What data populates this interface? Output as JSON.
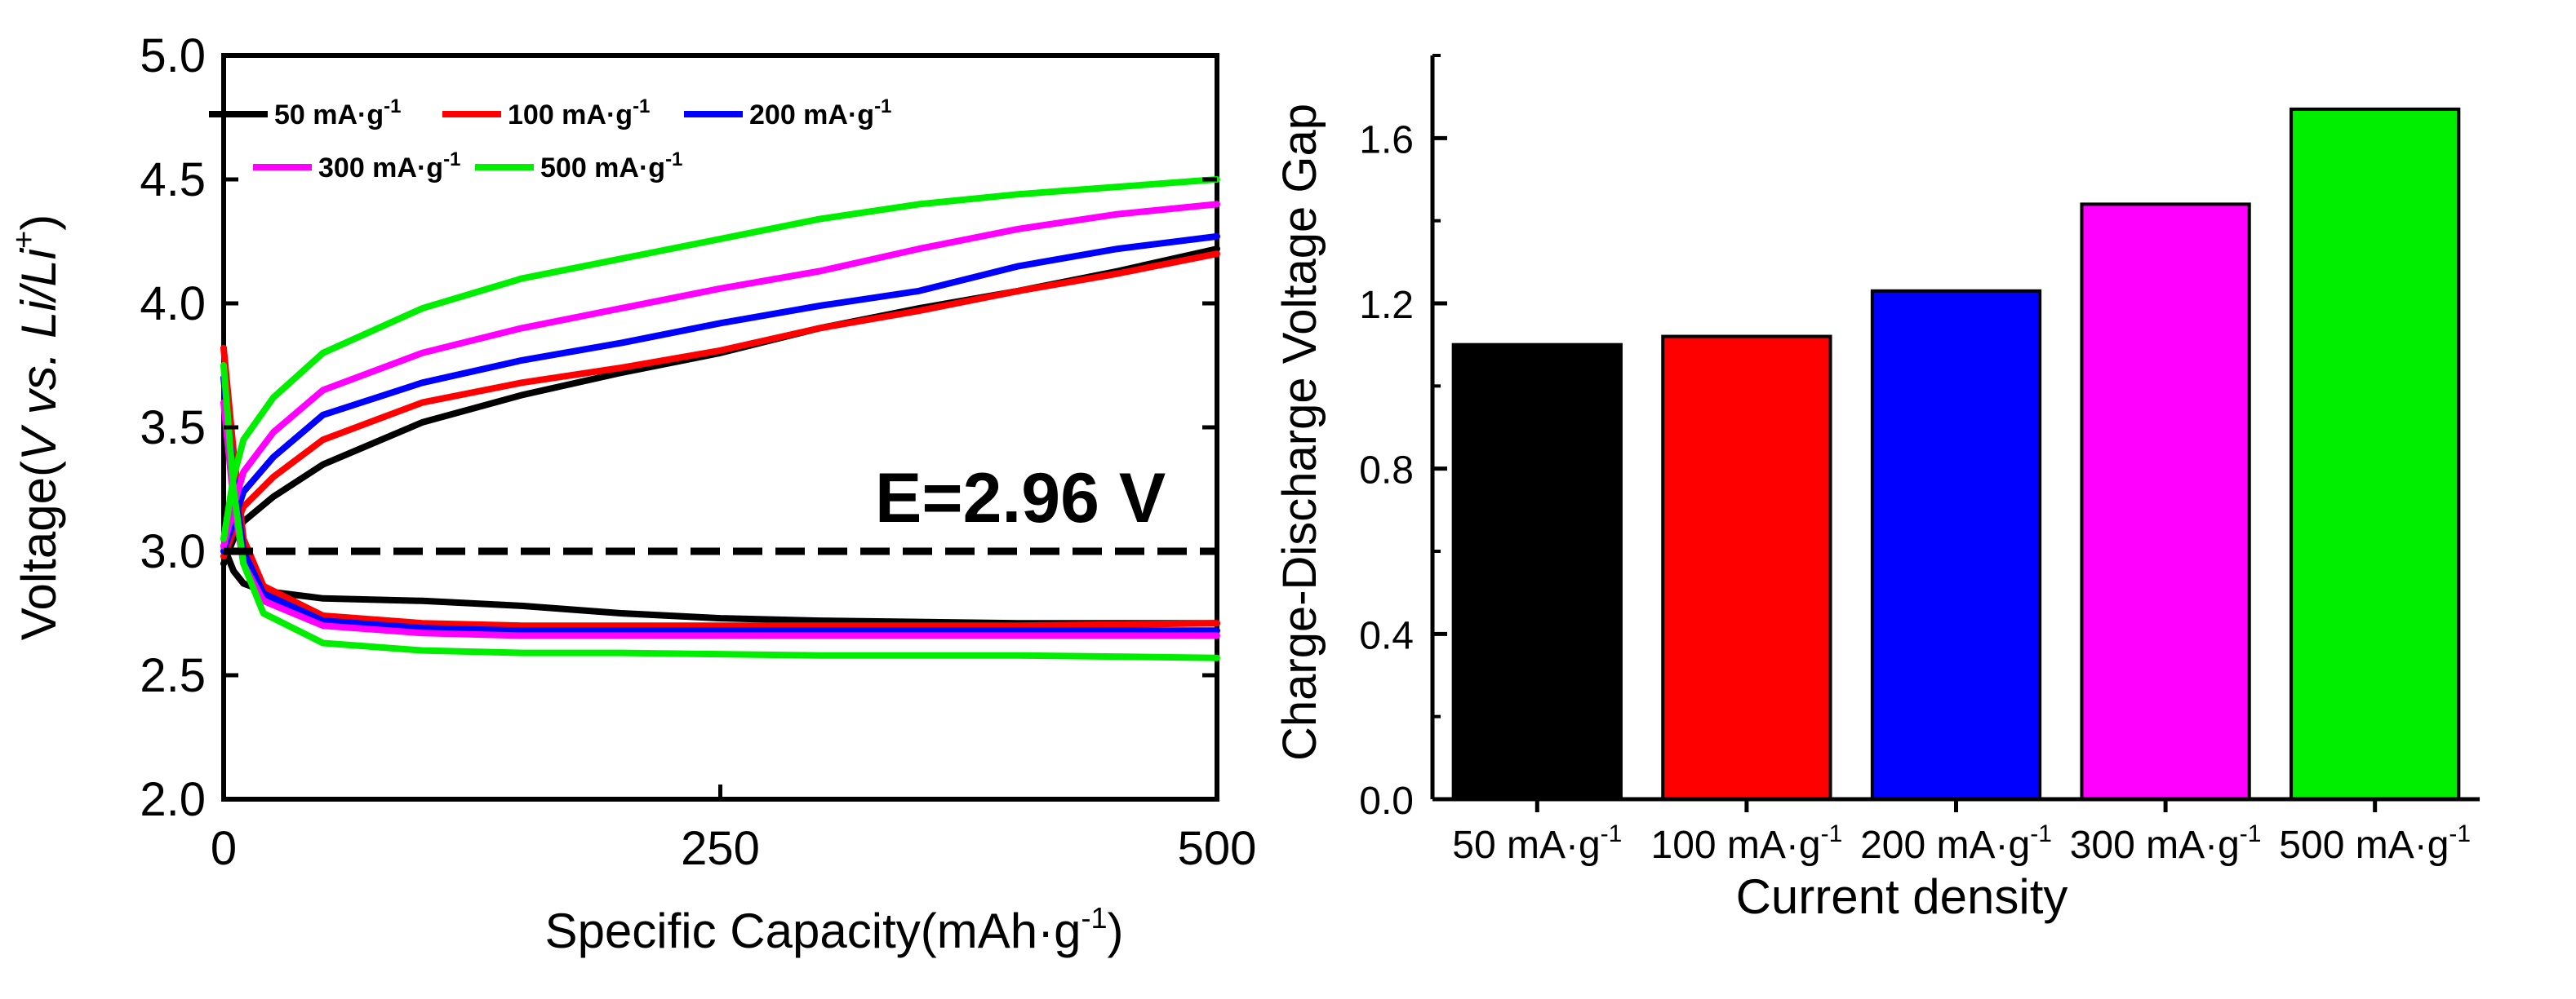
{
  "chart_data": [
    {
      "type": "line",
      "panel": "left",
      "ylabel": "Voltage(V vs. Li/Li+)",
      "ylabel_parts": {
        "prefix": "Voltage(",
        "v": "V",
        "vs": " vs. ",
        "li": "Li/Li",
        "sup": "+",
        "suffix": ")"
      },
      "xlabel": "Specific Capacity(mAh·g-1)",
      "xlabel_parts": {
        "main": "Specific Capacity(mAh·g",
        "sup": "-1",
        "close": ")"
      },
      "xlim": [
        0,
        500
      ],
      "ylim": [
        2.0,
        5.0
      ],
      "xticks": [
        "0",
        "250",
        "500"
      ],
      "yticks": [
        "2.0",
        "2.5",
        "3.0",
        "3.5",
        "4.0",
        "4.5",
        "5.0"
      ],
      "reference_line": {
        "y": 3.0,
        "label": "E=2.96 V",
        "style": "dashed"
      },
      "legend": {
        "placement": "top-left"
      },
      "series": [
        {
          "name": "50 mA·g-1",
          "label": "50 mA·g",
          "sup": "-1",
          "color": "#000000",
          "charge": [
            [
              0,
              2.95
            ],
            [
              5,
              3.05
            ],
            [
              10,
              3.12
            ],
            [
              25,
              3.22
            ],
            [
              50,
              3.35
            ],
            [
              100,
              3.52
            ],
            [
              150,
              3.63
            ],
            [
              200,
              3.72
            ],
            [
              250,
              3.8
            ],
            [
              300,
              3.9
            ],
            [
              350,
              3.98
            ],
            [
              400,
              4.05
            ],
            [
              450,
              4.13
            ],
            [
              500,
              4.22
            ]
          ],
          "discharge": [
            [
              0,
              3.02
            ],
            [
              5,
              2.92
            ],
            [
              10,
              2.87
            ],
            [
              20,
              2.84
            ],
            [
              50,
              2.81
            ],
            [
              100,
              2.8
            ],
            [
              150,
              2.78
            ],
            [
              200,
              2.75
            ],
            [
              250,
              2.73
            ],
            [
              300,
              2.72
            ],
            [
              400,
              2.71
            ],
            [
              500,
              2.71
            ]
          ]
        },
        {
          "name": "100 mA·g-1",
          "label": "100 mA·g",
          "sup": "-1",
          "color": "#ff0000",
          "charge": [
            [
              0,
              2.98
            ],
            [
              5,
              3.08
            ],
            [
              10,
              3.18
            ],
            [
              25,
              3.3
            ],
            [
              50,
              3.45
            ],
            [
              100,
              3.6
            ],
            [
              150,
              3.68
            ],
            [
              200,
              3.74
            ],
            [
              250,
              3.81
            ],
            [
              300,
              3.9
            ],
            [
              350,
              3.97
            ],
            [
              400,
              4.05
            ],
            [
              450,
              4.12
            ],
            [
              500,
              4.2
            ]
          ],
          "discharge": [
            [
              0,
              3.82
            ],
            [
              5,
              3.4
            ],
            [
              10,
              3.05
            ],
            [
              20,
              2.86
            ],
            [
              50,
              2.74
            ],
            [
              100,
              2.71
            ],
            [
              150,
              2.7
            ],
            [
              200,
              2.7
            ],
            [
              300,
              2.7
            ],
            [
              400,
              2.7
            ],
            [
              500,
              2.71
            ]
          ]
        },
        {
          "name": "200 mA·g-1",
          "label": "200 mA·g",
          "sup": "-1",
          "color": "#0000ff",
          "charge": [
            [
              0,
              3.0
            ],
            [
              5,
              3.12
            ],
            [
              10,
              3.24
            ],
            [
              25,
              3.38
            ],
            [
              50,
              3.55
            ],
            [
              100,
              3.68
            ],
            [
              150,
              3.77
            ],
            [
              200,
              3.84
            ],
            [
              250,
              3.92
            ],
            [
              300,
              3.99
            ],
            [
              350,
              4.05
            ],
            [
              400,
              4.15
            ],
            [
              450,
              4.22
            ],
            [
              500,
              4.27
            ]
          ],
          "discharge": [
            [
              0,
              3.7
            ],
            [
              5,
              3.3
            ],
            [
              10,
              3.0
            ],
            [
              20,
              2.83
            ],
            [
              50,
              2.72
            ],
            [
              100,
              2.69
            ],
            [
              150,
              2.68
            ],
            [
              200,
              2.68
            ],
            [
              300,
              2.68
            ],
            [
              400,
              2.68
            ],
            [
              500,
              2.68
            ]
          ]
        },
        {
          "name": "300 mA·g-1",
          "label": "300 mA·g",
          "sup": "-1",
          "color": "#ff00ff",
          "charge": [
            [
              0,
              3.02
            ],
            [
              5,
              3.18
            ],
            [
              10,
              3.32
            ],
            [
              25,
              3.48
            ],
            [
              50,
              3.65
            ],
            [
              100,
              3.8
            ],
            [
              150,
              3.9
            ],
            [
              200,
              3.98
            ],
            [
              250,
              4.06
            ],
            [
              300,
              4.13
            ],
            [
              350,
              4.22
            ],
            [
              400,
              4.3
            ],
            [
              450,
              4.36
            ],
            [
              500,
              4.4
            ]
          ],
          "discharge": [
            [
              0,
              3.6
            ],
            [
              5,
              3.2
            ],
            [
              10,
              2.95
            ],
            [
              20,
              2.8
            ],
            [
              50,
              2.7
            ],
            [
              100,
              2.67
            ],
            [
              150,
              2.66
            ],
            [
              200,
              2.66
            ],
            [
              300,
              2.66
            ],
            [
              400,
              2.66
            ],
            [
              500,
              2.66
            ]
          ]
        },
        {
          "name": "500 mA·g-1",
          "label": "500 mA·g",
          "sup": "-1",
          "color": "#00ee00",
          "charge": [
            [
              0,
              3.05
            ],
            [
              5,
              3.3
            ],
            [
              10,
              3.45
            ],
            [
              25,
              3.62
            ],
            [
              50,
              3.8
            ],
            [
              100,
              3.98
            ],
            [
              150,
              4.1
            ],
            [
              200,
              4.18
            ],
            [
              250,
              4.26
            ],
            [
              300,
              4.34
            ],
            [
              350,
              4.4
            ],
            [
              400,
              4.44
            ],
            [
              450,
              4.47
            ],
            [
              500,
              4.5
            ]
          ],
          "discharge": [
            [
              0,
              3.75
            ],
            [
              5,
              3.25
            ],
            [
              10,
              2.95
            ],
            [
              20,
              2.75
            ],
            [
              50,
              2.63
            ],
            [
              100,
              2.6
            ],
            [
              150,
              2.59
            ],
            [
              200,
              2.59
            ],
            [
              300,
              2.58
            ],
            [
              400,
              2.58
            ],
            [
              500,
              2.57
            ]
          ]
        }
      ]
    },
    {
      "type": "bar",
      "panel": "right",
      "title_axis": "Charge-Discharge Voltage Gap",
      "xlabel": "Current density",
      "categories": [
        "50 mA·g-1",
        "100 mA·g-1",
        "200 mA·g-1",
        "300 mA·g-1",
        "500 mA·g-1"
      ],
      "category_labels": [
        {
          "main": "50 mA·g",
          "sup": "-1"
        },
        {
          "main": "100 mA·g",
          "sup": "-1"
        },
        {
          "main": "200 mA·g",
          "sup": "-1"
        },
        {
          "main": "300 mA·g",
          "sup": "-1"
        },
        {
          "main": "500 mA·g",
          "sup": "-1"
        }
      ],
      "values": [
        1.1,
        1.12,
        1.23,
        1.44,
        1.67
      ],
      "colors": [
        "#000000",
        "#ff0000",
        "#0000ff",
        "#ff00ff",
        "#00ee00"
      ],
      "ylim": [
        0.0,
        1.8
      ],
      "yticks": [
        "0.0",
        "0.4",
        "0.8",
        "1.2",
        "1.6"
      ],
      "ylabel": "Charge-Discharge Voltage Gap"
    }
  ]
}
